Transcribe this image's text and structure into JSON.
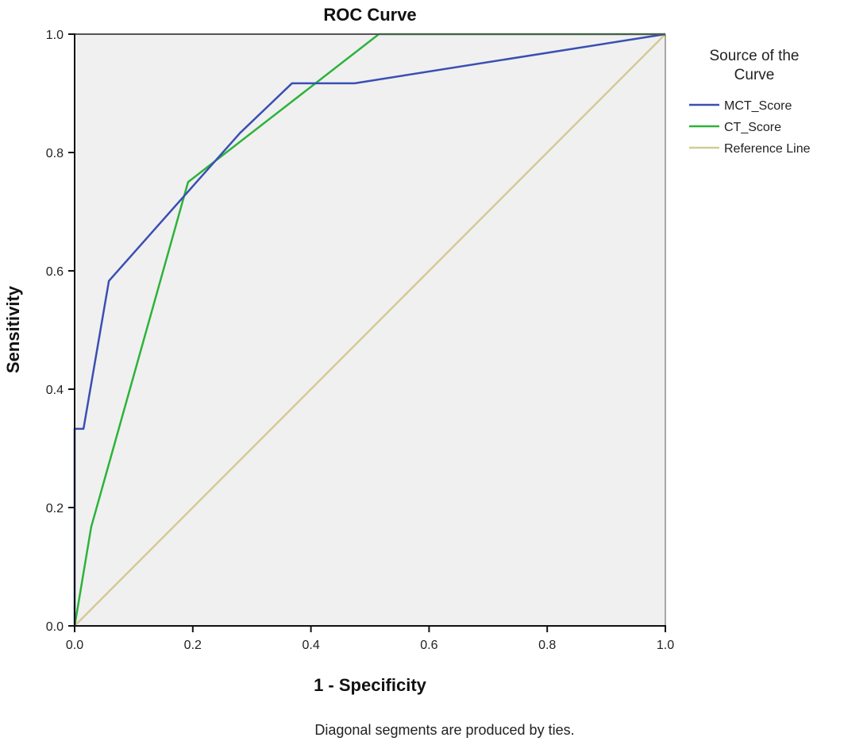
{
  "chart_data": {
    "type": "line",
    "title": "ROC Curve",
    "xlabel": "1 - Specificity",
    "ylabel": "Sensitivity",
    "xlim": [
      0,
      1
    ],
    "ylim": [
      0,
      1
    ],
    "xticks": [
      "0.0",
      "0.2",
      "0.4",
      "0.6",
      "0.8",
      "1.0"
    ],
    "yticks": [
      "0.0",
      "0.2",
      "0.4",
      "0.6",
      "0.8",
      "1.0"
    ],
    "grid": false,
    "legend": {
      "title_lines": [
        "Source of the",
        "Curve"
      ],
      "placement": "right"
    },
    "footnote": "Diagonal segments are produced by ties.",
    "plot_background": "#f0f0f0",
    "series": [
      {
        "name": "MCT_Score",
        "color": "#3a4fb3",
        "x": [
          0,
          0,
          0.015,
          0.058,
          0.28,
          0.368,
          0.474,
          1.0
        ],
        "y": [
          0,
          0.333,
          0.333,
          0.583,
          0.833,
          0.917,
          0.917,
          1.0
        ]
      },
      {
        "name": "CT_Score",
        "color": "#2cb33a",
        "x": [
          0,
          0.028,
          0.192,
          0.515,
          1.0
        ],
        "y": [
          0,
          0.167,
          0.75,
          1.0,
          1.0
        ]
      },
      {
        "name": "Reference Line",
        "color": "#d3cb96",
        "x": [
          0,
          1
        ],
        "y": [
          0,
          1
        ]
      }
    ]
  }
}
